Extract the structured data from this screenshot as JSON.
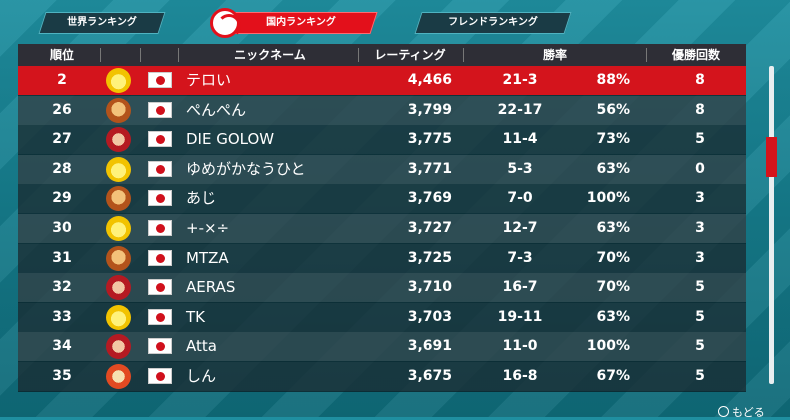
{
  "tabs": [
    {
      "label": "世界ランキング",
      "active": false
    },
    {
      "label": "国内ランキング",
      "active": true
    },
    {
      "label": "フレンドランキング",
      "active": false
    }
  ],
  "columns": {
    "rank": "順位",
    "nickname": "ニックネーム",
    "rating": "レーティング",
    "winrate": "勝率",
    "titles": "優勝回数"
  },
  "rows": [
    {
      "rank": "2",
      "avatar": "star-avatar-icon",
      "flag": "japan-flag-icon",
      "name": "テロい",
      "rating": "4,466",
      "record": "21-3",
      "pct": "88%",
      "titles": "8",
      "highlight": true
    },
    {
      "rank": "26",
      "avatar": "bowser-avatar-icon",
      "flag": "japan-flag-icon",
      "name": "ぺんぺん",
      "rating": "3,799",
      "record": "22-17",
      "pct": "56%",
      "titles": "8"
    },
    {
      "rank": "27",
      "avatar": "pauline-avatar-icon",
      "flag": "japan-flag-icon",
      "name": "DIE GOLOW",
      "rating": "3,775",
      "record": "11-4",
      "pct": "73%",
      "titles": "5"
    },
    {
      "rank": "28",
      "avatar": "star-avatar-icon",
      "flag": "japan-flag-icon",
      "name": "ゆめがかなうひと",
      "rating": "3,771",
      "record": "5-3",
      "pct": "63%",
      "titles": "0"
    },
    {
      "rank": "29",
      "avatar": "bowser-avatar-icon",
      "flag": "japan-flag-icon",
      "name": "あじ",
      "rating": "3,769",
      "record": "7-0",
      "pct": "100%",
      "titles": "3"
    },
    {
      "rank": "30",
      "avatar": "star-avatar-icon",
      "flag": "japan-flag-icon",
      "name": "+-×÷",
      "rating": "3,727",
      "record": "12-7",
      "pct": "63%",
      "titles": "3"
    },
    {
      "rank": "31",
      "avatar": "bowser-avatar-icon",
      "flag": "japan-flag-icon",
      "name": "MTZA",
      "rating": "3,725",
      "record": "7-3",
      "pct": "70%",
      "titles": "3"
    },
    {
      "rank": "32",
      "avatar": "pauline-avatar-icon",
      "flag": "japan-flag-icon",
      "name": "AERAS",
      "rating": "3,710",
      "record": "16-7",
      "pct": "70%",
      "titles": "5"
    },
    {
      "rank": "33",
      "avatar": "star-avatar-icon",
      "flag": "japan-flag-icon",
      "name": "TK",
      "rating": "3,703",
      "record": "19-11",
      "pct": "63%",
      "titles": "5"
    },
    {
      "rank": "34",
      "avatar": "pauline-avatar-icon",
      "flag": "japan-flag-icon",
      "name": "Atta",
      "rating": "3,691",
      "record": "11-0",
      "pct": "100%",
      "titles": "5"
    },
    {
      "rank": "35",
      "avatar": "yoshi-avatar-icon",
      "flag": "japan-flag-icon",
      "name": "しん",
      "rating": "3,675",
      "record": "16-8",
      "pct": "67%",
      "titles": "5"
    }
  ],
  "footer": {
    "back_label": "もどる",
    "back_icon": "b-button-icon"
  },
  "colors": {
    "accent": "#e3101b",
    "highlight_row": "#d4141c",
    "background": "#167d8d"
  }
}
